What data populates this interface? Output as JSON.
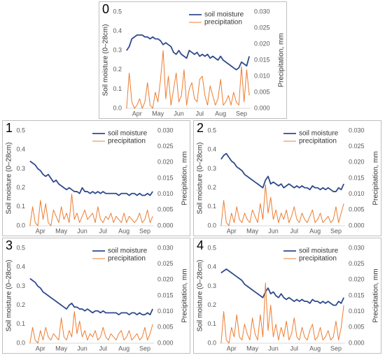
{
  "chart_data": [
    {
      "type": "line",
      "label": "0",
      "ylabel": "Soil moisture (0–28cm)",
      "y2label": "Precipitation, mm",
      "legend": "top-right",
      "categories": [
        null,
        null,
        null,
        null,
        "Apr",
        null,
        null,
        null,
        null,
        null,
        null,
        null,
        "May",
        null,
        null,
        null,
        null,
        null,
        null,
        null,
        "Jun",
        null,
        null,
        null,
        null,
        null,
        null,
        null,
        "Jul",
        null,
        null,
        null,
        null,
        null,
        null,
        null,
        "Aug",
        null,
        null,
        null,
        null,
        null,
        null,
        null,
        "Sep",
        null,
        null,
        null
      ],
      "series": [
        {
          "name": "soil moisture",
          "color": "#2f4b8c",
          "values": [
            0.3,
            0.32,
            0.36,
            0.37,
            0.38,
            0.38,
            0.38,
            0.37,
            0.37,
            0.36,
            0.37,
            0.36,
            0.36,
            0.35,
            0.33,
            0.34,
            0.33,
            0.32,
            0.29,
            0.28,
            0.3,
            0.28,
            0.27,
            0.26,
            0.3,
            0.29,
            0.28,
            0.29,
            0.27,
            0.28,
            0.27,
            0.28,
            0.26,
            0.27,
            0.26,
            0.25,
            0.27,
            0.25,
            0.24,
            0.23,
            0.22,
            0.21,
            0.2,
            0.21,
            0.24,
            0.23,
            0.22,
            0.27
          ]
        },
        {
          "name": "precipitation",
          "color": "#ed7d31",
          "axis": "y2",
          "values": [
            0,
            0.011,
            0.002,
            0,
            0.001,
            0.003,
            0,
            0.002,
            0.008,
            0.001,
            0,
            0.005,
            0.002,
            0.009,
            0.018,
            0.003,
            0.01,
            0.001,
            0.006,
            0.011,
            0.002,
            0.004,
            0.012,
            0.001,
            0.006,
            0.008,
            0.003,
            0.002,
            0.009,
            0.01,
            0.004,
            0.001,
            0.007,
            0.004,
            0.001,
            0.003,
            0.009,
            0.001,
            0.002,
            0.004,
            0.001,
            0.005,
            0.002,
            0.001,
            0.013,
            0.002,
            0.012,
            0.004
          ]
        }
      ],
      "ylim": [
        0,
        0.5
      ],
      "yticks": [
        {
          "value": 0,
          "label": "0.0"
        },
        0.1,
        0.2,
        0.3,
        0.4,
        0.5
      ],
      "y2lim": [
        0,
        0.03
      ],
      "y2ticks": [
        {
          "value": 0,
          "label": "0.000"
        },
        {
          "value": 0.005,
          "label": "0.005"
        },
        {
          "value": 0.01,
          "label": "0.010"
        },
        {
          "value": 0.015,
          "label": "0.015"
        },
        {
          "value": 0.02,
          "label": "0.020"
        },
        {
          "value": 0.025,
          "label": "0.025"
        },
        {
          "value": 0.03,
          "label": "0.030"
        }
      ]
    },
    {
      "type": "line",
      "label": "1",
      "ylabel": "Soil moisture (0–28cm)",
      "y2label": "Precipitation, mm",
      "legend": "top-right",
      "categories": [
        null,
        null,
        null,
        null,
        "Apr",
        null,
        null,
        null,
        null,
        null,
        null,
        null,
        "May",
        null,
        null,
        null,
        null,
        null,
        null,
        null,
        "Jun",
        null,
        null,
        null,
        null,
        null,
        null,
        null,
        "Jul",
        null,
        null,
        null,
        null,
        null,
        null,
        null,
        "Aug",
        null,
        null,
        null,
        null,
        null,
        null,
        null,
        "Sep",
        null,
        null,
        null
      ],
      "series": [
        {
          "name": "soil moisture",
          "color": "#2f4b8c",
          "values": [
            0.34,
            0.33,
            0.32,
            0.3,
            0.29,
            0.27,
            0.26,
            0.27,
            0.25,
            0.23,
            0.24,
            0.22,
            0.21,
            0.2,
            0.19,
            0.2,
            0.19,
            0.18,
            0.18,
            0.17,
            0.2,
            0.18,
            0.18,
            0.17,
            0.18,
            0.17,
            0.18,
            0.17,
            0.18,
            0.17,
            0.17,
            0.17,
            0.17,
            0.17,
            0.16,
            0.17,
            0.17,
            0.17,
            0.16,
            0.17,
            0.17,
            0.16,
            0.17,
            0.16,
            0.16,
            0.17,
            0.16,
            0.18
          ]
        },
        {
          "name": "precipitation",
          "color": "#ed7d31",
          "axis": "y2",
          "values": [
            0,
            0.006,
            0.001,
            0,
            0.008,
            0.002,
            0.007,
            0.001,
            0,
            0.005,
            0.003,
            0.001,
            0.006,
            0.002,
            0.004,
            0.001,
            0.01,
            0.002,
            0.004,
            0.001,
            0.003,
            0.005,
            0.002,
            0.003,
            0.004,
            0.001,
            0.006,
            0.002,
            0.001,
            0.003,
            0.002,
            0.004,
            0.001,
            0.003,
            0.002,
            0.001,
            0.004,
            0.001,
            0.003,
            0.002,
            0.001,
            0.002,
            0.004,
            0.001,
            0.002,
            0.005,
            0.001,
            0.003
          ]
        }
      ],
      "ylim": [
        0,
        0.5
      ],
      "yticks": [
        {
          "value": 0,
          "label": "0.0"
        },
        0.1,
        0.2,
        0.3,
        0.4,
        0.5
      ],
      "y2lim": [
        0,
        0.03
      ],
      "y2ticks": [
        {
          "value": 0,
          "label": "0.000"
        },
        {
          "value": 0.005,
          "label": "0.005"
        },
        {
          "value": 0.01,
          "label": "0.010"
        },
        {
          "value": 0.015,
          "label": "0.015"
        },
        {
          "value": 0.02,
          "label": "0.020"
        },
        {
          "value": 0.025,
          "label": "0.025"
        },
        {
          "value": 0.03,
          "label": "0.030"
        }
      ]
    },
    {
      "type": "line",
      "label": "2",
      "ylabel": "Soil moisture (0–28cm)",
      "y2label": "Precipitation, mm",
      "legend": "top-right",
      "categories": [
        null,
        null,
        null,
        null,
        "Apr",
        null,
        null,
        null,
        null,
        null,
        null,
        null,
        "May",
        null,
        null,
        null,
        null,
        null,
        null,
        null,
        "Jun",
        null,
        null,
        null,
        null,
        null,
        null,
        null,
        "Jul",
        null,
        null,
        null,
        null,
        null,
        null,
        null,
        "Aug",
        null,
        null,
        null,
        null,
        null,
        null,
        null,
        "Sep",
        null,
        null,
        null
      ],
      "series": [
        {
          "name": "soil moisture",
          "color": "#2f4b8c",
          "values": [
            0.35,
            0.37,
            0.38,
            0.36,
            0.34,
            0.33,
            0.31,
            0.3,
            0.29,
            0.27,
            0.26,
            0.25,
            0.24,
            0.23,
            0.22,
            0.21,
            0.2,
            0.24,
            0.26,
            0.22,
            0.23,
            0.22,
            0.21,
            0.22,
            0.2,
            0.21,
            0.22,
            0.21,
            0.2,
            0.21,
            0.2,
            0.21,
            0.2,
            0.2,
            0.19,
            0.21,
            0.2,
            0.2,
            0.19,
            0.2,
            0.19,
            0.2,
            0.19,
            0.18,
            0.18,
            0.2,
            0.19,
            0.22
          ]
        },
        {
          "name": "precipitation",
          "color": "#ed7d31",
          "axis": "y2",
          "values": [
            0,
            0.008,
            0.001,
            0,
            0.004,
            0.001,
            0.006,
            0.002,
            0.001,
            0.004,
            0.002,
            0.001,
            0.005,
            0.003,
            0.001,
            0.007,
            0.002,
            0.013,
            0.004,
            0.009,
            0.002,
            0.005,
            0.001,
            0.004,
            0.002,
            0.005,
            0.001,
            0.003,
            0.006,
            0.002,
            0.001,
            0.004,
            0.002,
            0.001,
            0.003,
            0.005,
            0.001,
            0.002,
            0.004,
            0.001,
            0.002,
            0.003,
            0.001,
            0.002,
            0.006,
            0.001,
            0.004,
            0.007
          ]
        }
      ],
      "ylim": [
        0,
        0.5
      ],
      "yticks": [
        {
          "value": 0,
          "label": "0.0"
        },
        0.1,
        0.2,
        0.3,
        0.4,
        0.5
      ],
      "y2lim": [
        0,
        0.03
      ],
      "y2ticks": [
        {
          "value": 0,
          "label": "0.000"
        },
        {
          "value": 0.005,
          "label": "0.005"
        },
        {
          "value": 0.01,
          "label": "0.010"
        },
        {
          "value": 0.015,
          "label": "0.015"
        },
        {
          "value": 0.02,
          "label": "0.020"
        },
        {
          "value": 0.025,
          "label": "0.025"
        },
        {
          "value": 0.03,
          "label": "0.030"
        }
      ]
    },
    {
      "type": "line",
      "label": "3",
      "ylabel": "Soil moisture (0–28cm)",
      "y2label": "Precipitation, mm",
      "legend": "top-right",
      "categories": [
        null,
        null,
        null,
        null,
        "Apr",
        null,
        null,
        null,
        null,
        null,
        null,
        null,
        "May",
        null,
        null,
        null,
        null,
        null,
        null,
        null,
        "Jun",
        null,
        null,
        null,
        null,
        null,
        null,
        null,
        "Jul",
        null,
        null,
        null,
        null,
        null,
        null,
        null,
        "Aug",
        null,
        null,
        null,
        null,
        null,
        null,
        null,
        "Sep",
        null,
        null,
        null
      ],
      "series": [
        {
          "name": "soil moisture",
          "color": "#2f4b8c",
          "values": [
            0.34,
            0.33,
            0.32,
            0.3,
            0.29,
            0.27,
            0.26,
            0.25,
            0.24,
            0.23,
            0.22,
            0.21,
            0.2,
            0.19,
            0.18,
            0.2,
            0.21,
            0.19,
            0.19,
            0.18,
            0.18,
            0.17,
            0.18,
            0.17,
            0.16,
            0.17,
            0.17,
            0.16,
            0.17,
            0.16,
            0.16,
            0.16,
            0.16,
            0.16,
            0.15,
            0.16,
            0.16,
            0.16,
            0.15,
            0.16,
            0.16,
            0.15,
            0.16,
            0.15,
            0.15,
            0.16,
            0.15,
            0.18
          ]
        },
        {
          "name": "precipitation",
          "color": "#ed7d31",
          "axis": "y2",
          "values": [
            0,
            0.005,
            0.001,
            0,
            0.004,
            0.001,
            0.005,
            0.002,
            0.001,
            0.003,
            0.002,
            0.001,
            0.008,
            0.002,
            0.001,
            0.004,
            0.002,
            0.01,
            0.003,
            0.007,
            0.002,
            0.004,
            0.001,
            0.003,
            0.002,
            0.004,
            0.001,
            0.002,
            0.005,
            0.002,
            0.001,
            0.003,
            0.002,
            0.001,
            0.003,
            0.004,
            0.001,
            0.002,
            0.004,
            0.001,
            0.002,
            0.003,
            0.001,
            0.002,
            0.005,
            0.001,
            0.003,
            0.006
          ]
        }
      ],
      "ylim": [
        0,
        0.5
      ],
      "yticks": [
        {
          "value": 0,
          "label": "0.0"
        },
        0.1,
        0.2,
        0.3,
        0.4,
        0.5
      ],
      "y2lim": [
        0,
        0.03
      ],
      "y2ticks": [
        {
          "value": 0,
          "label": "0.000"
        },
        {
          "value": 0.005,
          "label": "0.005"
        },
        {
          "value": 0.01,
          "label": "0.010"
        },
        {
          "value": 0.015,
          "label": "0.015"
        },
        {
          "value": 0.02,
          "label": "0.020"
        },
        {
          "value": 0.025,
          "label": "0.025"
        },
        {
          "value": 0.03,
          "label": "0.030"
        }
      ]
    },
    {
      "type": "line",
      "label": "4",
      "ylabel": "Soil moisture (0–28cm)",
      "y2label": "Precipitation, mm",
      "legend": "top-right",
      "categories": [
        null,
        null,
        null,
        null,
        "Apr",
        null,
        null,
        null,
        null,
        null,
        null,
        null,
        "May",
        null,
        null,
        null,
        null,
        null,
        null,
        null,
        "Jun",
        null,
        null,
        null,
        null,
        null,
        null,
        null,
        "Jul",
        null,
        null,
        null,
        null,
        null,
        null,
        null,
        "Aug",
        null,
        null,
        null,
        null,
        null,
        null,
        null,
        "Sep",
        null,
        null,
        null
      ],
      "series": [
        {
          "name": "soil moisture",
          "color": "#2f4b8c",
          "values": [
            0.37,
            0.38,
            0.39,
            0.38,
            0.37,
            0.36,
            0.35,
            0.34,
            0.33,
            0.31,
            0.3,
            0.29,
            0.28,
            0.27,
            0.26,
            0.25,
            0.24,
            0.27,
            0.29,
            0.26,
            0.27,
            0.25,
            0.24,
            0.26,
            0.24,
            0.23,
            0.24,
            0.23,
            0.22,
            0.23,
            0.22,
            0.23,
            0.22,
            0.22,
            0.21,
            0.23,
            0.22,
            0.22,
            0.21,
            0.22,
            0.21,
            0.22,
            0.21,
            0.2,
            0.2,
            0.22,
            0.21,
            0.24
          ]
        },
        {
          "name": "precipitation",
          "color": "#ed7d31",
          "axis": "y2",
          "values": [
            0,
            0.01,
            0.001,
            0,
            0.005,
            0.002,
            0.009,
            0.002,
            0.001,
            0.006,
            0.003,
            0.001,
            0.008,
            0.003,
            0.001,
            0.009,
            0.002,
            0.019,
            0.004,
            0.012,
            0.002,
            0.006,
            0.001,
            0.005,
            0.002,
            0.007,
            0.001,
            0.003,
            0.008,
            0.002,
            0.001,
            0.005,
            0.002,
            0.001,
            0.004,
            0.006,
            0.001,
            0.002,
            0.005,
            0.001,
            0.002,
            0.004,
            0.001,
            0.002,
            0.007,
            0.001,
            0.005,
            0.012
          ]
        }
      ],
      "ylim": [
        0,
        0.5
      ],
      "yticks": [
        {
          "value": 0,
          "label": "0.0"
        },
        0.1,
        0.2,
        0.3,
        0.4,
        0.5
      ],
      "y2lim": [
        0,
        0.03
      ],
      "y2ticks": [
        {
          "value": 0,
          "label": "0.000"
        },
        {
          "value": 0.005,
          "label": "0.005"
        },
        {
          "value": 0.01,
          "label": "0.010"
        },
        {
          "value": 0.015,
          "label": "0.015"
        },
        {
          "value": 0.02,
          "label": "0.020"
        },
        {
          "value": 0.025,
          "label": "0.025"
        },
        {
          "value": 0.03,
          "label": "0.030"
        }
      ]
    }
  ]
}
